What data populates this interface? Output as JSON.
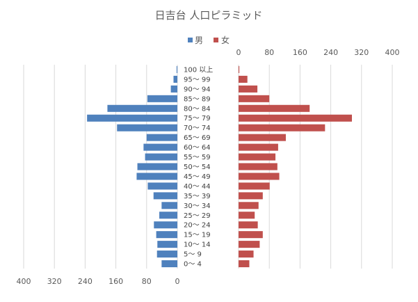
{
  "chart_data": {
    "type": "bar",
    "title": "日吉台 人口ピラミッド",
    "legend": {
      "placement": "top-center",
      "items": [
        {
          "name": "男",
          "color": "#4f81bd"
        },
        {
          "name": "女",
          "color": "#c0504d"
        }
      ]
    },
    "categories": [
      "100 以上",
      "95～ 99",
      "90～ 94",
      "85～ 89",
      "80～ 84",
      "75～ 79",
      "70～ 74",
      "65～ 69",
      "60～ 64",
      "55～ 59",
      "50～ 54",
      "45～ 49",
      "40～ 44",
      "35～ 39",
      "30～ 34",
      "25～ 29",
      "20～ 24",
      "15～ 19",
      "10～ 14",
      "5～ 9",
      "0～ 4"
    ],
    "series": [
      {
        "name": "男",
        "color": "#4f81bd",
        "values": [
          2,
          10,
          17,
          78,
          182,
          235,
          157,
          80,
          88,
          84,
          104,
          106,
          77,
          62,
          41,
          47,
          61,
          55,
          52,
          53,
          41
        ]
      },
      {
        "name": "女",
        "color": "#c0504d",
        "values": [
          2,
          23,
          49,
          80,
          185,
          295,
          225,
          123,
          103,
          96,
          101,
          106,
          81,
          63,
          52,
          42,
          50,
          63,
          55,
          39,
          28
        ]
      }
    ],
    "male_axis": {
      "ticks": [
        400,
        320,
        240,
        160,
        80,
        0
      ],
      "range": [
        0,
        400
      ],
      "reversed": true,
      "position": "bottom"
    },
    "female_axis": {
      "ticks": [
        0,
        80,
        160,
        240,
        320,
        400
      ],
      "range": [
        0,
        400
      ],
      "position": "top"
    },
    "grid": true
  }
}
